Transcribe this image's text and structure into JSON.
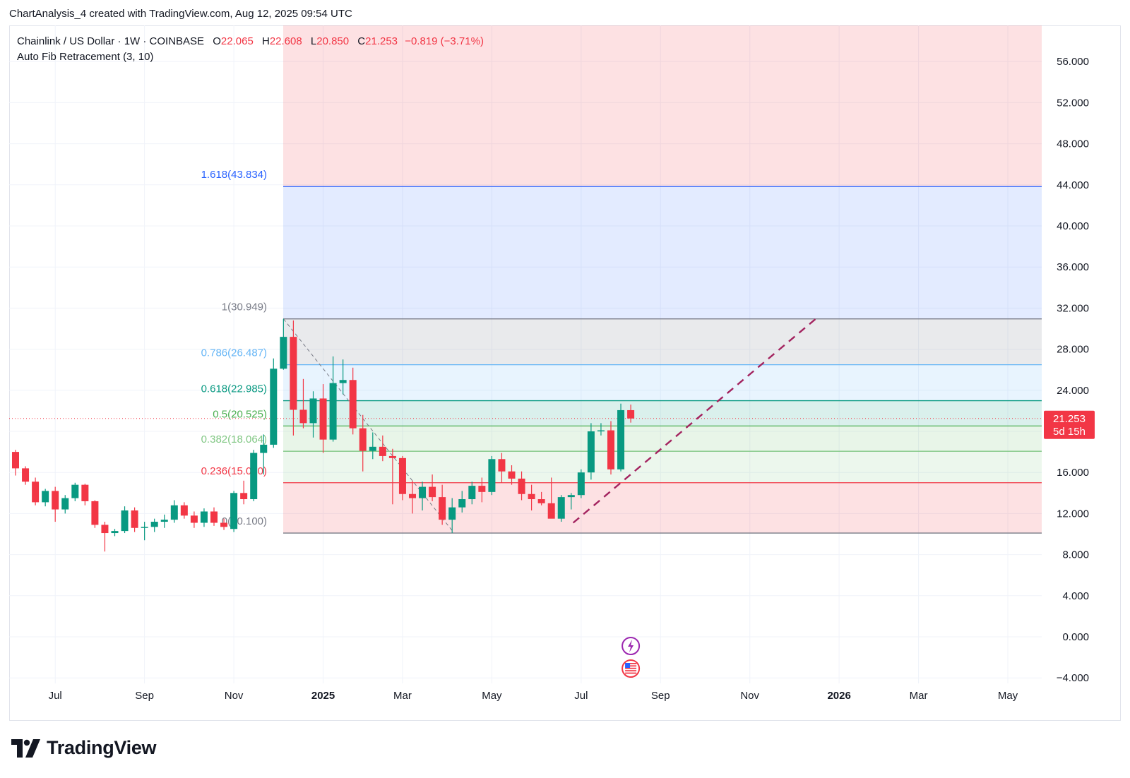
{
  "credit": "ChartAnalysis_4 created with TradingView.com, Aug 12, 2025 09:54 UTC",
  "legend": {
    "symbol": "Chainlink / US Dollar · 1W · COINBASE",
    "o_label": "O",
    "o_value": "22.065",
    "h_label": "H",
    "h_value": "22.608",
    "l_label": "L",
    "l_value": "20.850",
    "c_label": "C",
    "c_value": "21.253",
    "change": "−0.819 (−3.71%)",
    "indicator": "Auto Fib Retracement (3, 10)"
  },
  "brand": "TradingView",
  "colors": {
    "up": "#089981",
    "down": "#f23645",
    "trend": "#a3235f"
  },
  "chart_data": {
    "type": "candlestick",
    "title": "Chainlink / US Dollar · 1W · COINBASE",
    "ylim": [
      -4,
      60
    ],
    "y_ticks": [
      "56.000",
      "52.000",
      "48.000",
      "44.000",
      "40.000",
      "36.000",
      "32.000",
      "28.000",
      "24.000",
      "20.000",
      "16.000",
      "12.000",
      "8.000",
      "4.000",
      "0.000",
      "−4.000"
    ],
    "x_ticks": [
      {
        "label": "Jul",
        "week": 4,
        "bold": false
      },
      {
        "label": "Sep",
        "week": 13,
        "bold": false
      },
      {
        "label": "Nov",
        "week": 22,
        "bold": false
      },
      {
        "label": "2025",
        "week": 31,
        "bold": true
      },
      {
        "label": "Mar",
        "week": 39,
        "bold": false
      },
      {
        "label": "May",
        "week": 48,
        "bold": false
      },
      {
        "label": "Jul",
        "week": 57,
        "bold": false
      },
      {
        "label": "Sep",
        "week": 65,
        "bold": false
      },
      {
        "label": "Nov",
        "week": 74,
        "bold": false
      },
      {
        "label": "2026",
        "week": 83,
        "bold": true
      },
      {
        "label": "Mar",
        "week": 91,
        "bold": false
      },
      {
        "label": "May",
        "week": 100,
        "bold": false
      }
    ],
    "candles": [
      [
        18.0,
        18.2,
        15.7,
        16.4
      ],
      [
        16.4,
        16.6,
        14.8,
        15.1
      ],
      [
        15.1,
        15.5,
        12.8,
        13.1
      ],
      [
        13.1,
        14.4,
        12.7,
        14.2
      ],
      [
        14.2,
        14.6,
        11.2,
        12.4
      ],
      [
        12.4,
        13.8,
        12.0,
        13.5
      ],
      [
        13.5,
        15.0,
        13.2,
        14.8
      ],
      [
        14.8,
        14.9,
        12.8,
        13.2
      ],
      [
        13.2,
        13.3,
        10.6,
        10.9
      ],
      [
        10.9,
        11.2,
        8.3,
        10.1
      ],
      [
        10.1,
        10.5,
        9.8,
        10.3
      ],
      [
        10.3,
        12.7,
        10.1,
        12.3
      ],
      [
        12.3,
        12.6,
        10.2,
        10.6
      ],
      [
        10.6,
        11.2,
        9.4,
        10.7
      ],
      [
        10.7,
        11.5,
        10.2,
        11.2
      ],
      [
        11.2,
        11.9,
        10.6,
        11.4
      ],
      [
        11.4,
        13.3,
        11.1,
        12.8
      ],
      [
        12.8,
        13.1,
        11.5,
        11.8
      ],
      [
        11.8,
        12.2,
        10.6,
        11.1
      ],
      [
        11.1,
        12.5,
        10.7,
        12.2
      ],
      [
        12.2,
        12.6,
        10.8,
        11.1
      ],
      [
        11.1,
        11.5,
        10.4,
        10.7
      ],
      [
        10.5,
        14.2,
        10.2,
        14.0
      ],
      [
        14.0,
        15.2,
        12.9,
        13.4
      ],
      [
        13.4,
        18.2,
        13.2,
        17.9
      ],
      [
        17.9,
        19.7,
        15.8,
        18.7
      ],
      [
        18.7,
        27.1,
        18.4,
        26.1
      ],
      [
        26.1,
        30.949,
        26.0,
        29.2
      ],
      [
        29.2,
        30.8,
        19.6,
        22.1
      ],
      [
        22.1,
        25.1,
        20.3,
        20.8
      ],
      [
        20.8,
        23.9,
        19.4,
        23.2
      ],
      [
        23.2,
        24.6,
        17.9,
        19.2
      ],
      [
        19.2,
        27.3,
        19.0,
        24.7
      ],
      [
        24.7,
        27.0,
        23.6,
        25.0
      ],
      [
        25.0,
        26.2,
        19.7,
        20.3
      ],
      [
        20.3,
        21.6,
        16.1,
        18.1
      ],
      [
        18.1,
        19.9,
        17.3,
        18.5
      ],
      [
        18.5,
        19.6,
        17.1,
        17.6
      ],
      [
        17.6,
        18.3,
        12.9,
        17.4
      ],
      [
        17.4,
        17.6,
        13.3,
        13.9
      ],
      [
        13.9,
        15.2,
        12.0,
        13.5
      ],
      [
        13.5,
        15.1,
        12.3,
        14.6
      ],
      [
        14.6,
        15.8,
        13.2,
        13.6
      ],
      [
        13.6,
        14.8,
        10.9,
        11.4
      ],
      [
        11.4,
        13.5,
        10.1,
        12.6
      ],
      [
        12.6,
        14.2,
        12.1,
        13.4
      ],
      [
        13.4,
        15.1,
        12.9,
        14.7
      ],
      [
        14.7,
        15.5,
        13.1,
        14.1
      ],
      [
        14.1,
        17.6,
        13.8,
        17.3
      ],
      [
        17.3,
        17.9,
        15.0,
        16.1
      ],
      [
        16.1,
        16.7,
        14.8,
        15.4
      ],
      [
        15.4,
        16.1,
        13.3,
        13.9
      ],
      [
        13.9,
        14.8,
        12.3,
        13.4
      ],
      [
        13.4,
        14.1,
        12.8,
        13.0
      ],
      [
        13.0,
        15.5,
        11.9,
        11.5
      ],
      [
        11.5,
        13.8,
        11.2,
        13.6
      ],
      [
        13.6,
        14.0,
        12.4,
        13.8
      ],
      [
        13.8,
        16.3,
        13.5,
        16.0
      ],
      [
        16.0,
        20.8,
        15.3,
        20.0
      ],
      [
        20.0,
        20.8,
        19.6,
        20.1
      ],
      [
        20.1,
        21.0,
        15.8,
        16.3
      ],
      [
        16.3,
        22.7,
        16.1,
        22.065
      ],
      [
        22.065,
        22.608,
        20.85,
        21.253
      ]
    ],
    "current_price": "21.253",
    "countdown": "5d 15h",
    "fib": {
      "label": "Auto Fib Retracement (3, 10)",
      "levels": [
        {
          "label": "1.618(43.834)",
          "price": 43.834,
          "color": "#2962ff"
        },
        {
          "label": "1(30.949)",
          "price": 30.949,
          "color": "#787b86"
        },
        {
          "label": "0.786(26.487)",
          "price": 26.487,
          "color": "#64b5f6"
        },
        {
          "label": "0.618(22.985)",
          "price": 22.985,
          "color": "#089981"
        },
        {
          "label": "0.5(20.525)",
          "price": 20.525,
          "color": "#4caf50"
        },
        {
          "label": "0.382(18.064)",
          "price": 18.064,
          "color": "#81c784"
        },
        {
          "label": "0.236(15.0..0)",
          "price": 15.0,
          "color": "#f23645"
        },
        {
          "label": "0(10.100)",
          "price": 10.1,
          "color": "#787b86"
        }
      ]
    },
    "trendline": {
      "from": {
        "week": 56.2,
        "price": 11.1
      },
      "to": {
        "week": 80.7,
        "price": 31.0
      }
    }
  }
}
